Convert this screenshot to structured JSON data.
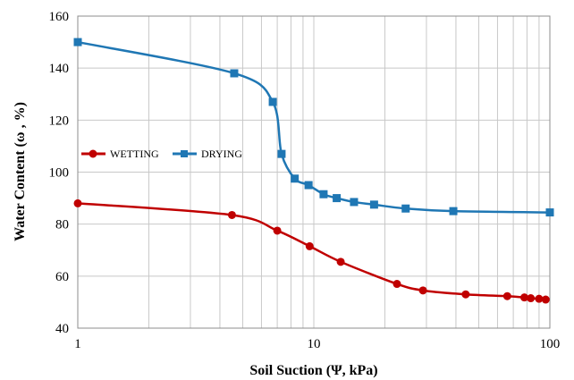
{
  "chart_data": {
    "type": "line",
    "xlabel": "Soil Suction (Ψ, kPa)",
    "ylabel": "Water Content (ω , %)",
    "x_scale": "log",
    "xlim": [
      1,
      100
    ],
    "ylim": [
      40,
      160
    ],
    "x_ticks": [
      "1",
      "10",
      "100"
    ],
    "y_ticks": [
      "40",
      "60",
      "80",
      "100",
      "120",
      "140",
      "160"
    ],
    "grid": {
      "vertical_minor": true,
      "horizontal": true
    },
    "legend": {
      "placement": "left-middle"
    },
    "series": [
      {
        "name": "WETTING",
        "color": "#c00000",
        "marker": "circle",
        "points": [
          [
            1,
            88
          ],
          [
            4.5,
            83.5
          ],
          [
            7,
            77.5
          ],
          [
            9.6,
            71.5
          ],
          [
            13,
            65.5
          ],
          [
            22.5,
            57
          ],
          [
            29,
            54.5
          ],
          [
            44,
            53
          ],
          [
            66,
            52.3
          ],
          [
            78,
            51.8
          ],
          [
            83,
            51.5
          ],
          [
            90,
            51.3
          ],
          [
            96,
            51
          ]
        ]
      },
      {
        "name": "DRYING",
        "color": "#1f77b4",
        "marker": "square",
        "points": [
          [
            1,
            150
          ],
          [
            4.6,
            138
          ],
          [
            6.7,
            127
          ],
          [
            7.3,
            107
          ],
          [
            8.3,
            97.5
          ],
          [
            9.5,
            95
          ],
          [
            11,
            91.5
          ],
          [
            12.5,
            90
          ],
          [
            14.8,
            88.5
          ],
          [
            18,
            87.5
          ],
          [
            24.5,
            86
          ],
          [
            39,
            85
          ],
          [
            100,
            84.5
          ]
        ]
      }
    ]
  }
}
